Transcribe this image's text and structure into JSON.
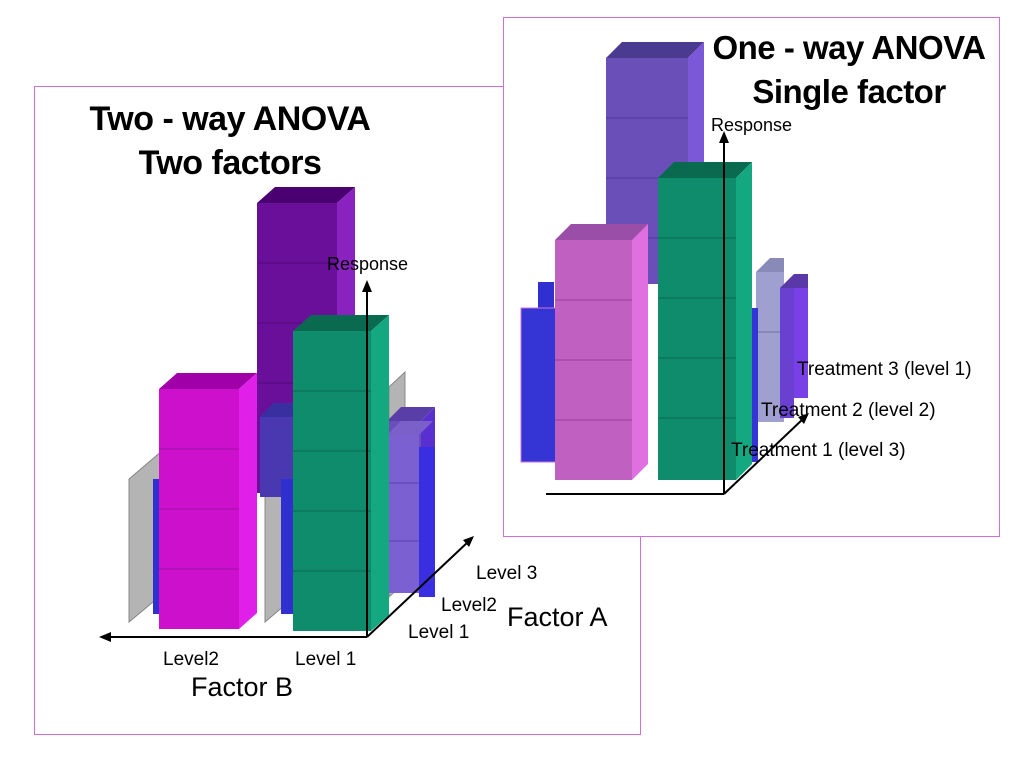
{
  "two_way": {
    "title_line1": "Two - way ANOVA",
    "title_line2": "Two factors",
    "axis_label": "Response",
    "factor_a_label": "Factor A",
    "factor_a_levels": [
      "Level 3",
      "Level2",
      "Level 1"
    ],
    "factor_b_label": "Factor B",
    "factor_b_levels": [
      "Level2",
      "Level 1"
    ]
  },
  "one_way": {
    "title_line1": "One - way ANOVA",
    "title_line2": "Single factor",
    "axis_label": "Response",
    "treatments": [
      "Treatment 3 (level 1)",
      "Treatment 2 (level 2)",
      "Treatment 1 (level 3)"
    ]
  },
  "colors": {
    "border": "#d070d8",
    "purple": "#6a0f9a",
    "magenta": "#cc10cc",
    "green": "#0e8c6c",
    "blue": "#3030d0",
    "violet": "#6a4fb8",
    "orchid": "#c060c0",
    "gray_panel": "#b4b4b4"
  }
}
